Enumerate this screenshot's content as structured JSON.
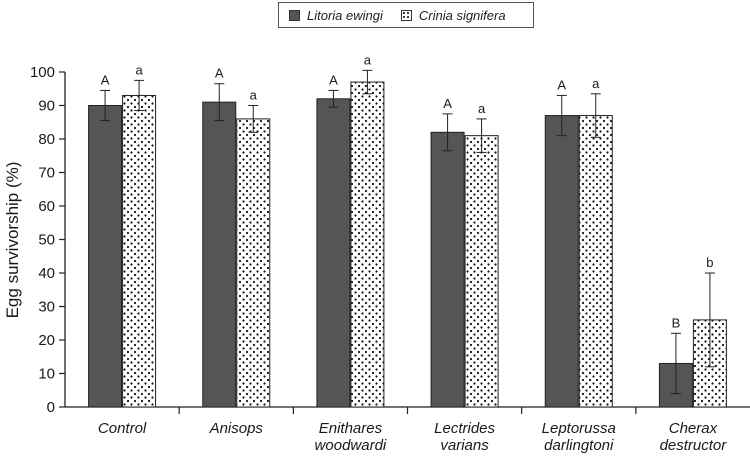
{
  "chart_data": {
    "type": "bar",
    "title": "",
    "xlabel": "",
    "ylabel": "Egg survivorship (%)",
    "ylim": [
      0,
      100
    ],
    "yticks": [
      "0",
      "10",
      "20",
      "30",
      "40",
      "50",
      "60",
      "70",
      "80",
      "90",
      "100"
    ],
    "legend_position": "top-center",
    "categories": [
      [
        "Control"
      ],
      [
        "Anisops"
      ],
      [
        "Enithares",
        "woodwardi"
      ],
      [
        "Lectrides",
        "varians"
      ],
      [
        "Leptorussa",
        "darlingtoni"
      ],
      [
        "Cherax",
        "destructor"
      ]
    ],
    "series": [
      {
        "name": "Litoria ewingi",
        "color": "#555555",
        "pattern": "solid",
        "values": [
          90,
          91,
          92,
          82,
          87,
          13
        ],
        "errors": [
          4.5,
          5.5,
          2.5,
          5.5,
          6,
          9
        ],
        "labels": [
          "A",
          "A",
          "A",
          "A",
          "A",
          "B"
        ]
      },
      {
        "name": "Crinia signifera",
        "color": "#ffffff",
        "pattern": "dots",
        "values": [
          93,
          86,
          97,
          81,
          87,
          26
        ],
        "errors": [
          4.5,
          4,
          3.5,
          5,
          6.5,
          14
        ],
        "labels": [
          "a",
          "a",
          "a",
          "a",
          "a",
          "b"
        ]
      }
    ]
  }
}
